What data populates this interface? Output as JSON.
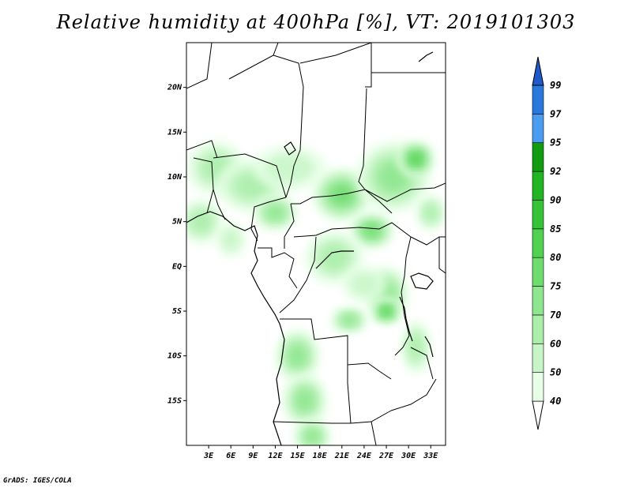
{
  "title": "Relative humidity at 400hPa [%], VT: 2019101303",
  "credit": "GrADS: IGES/COLA",
  "map": {
    "lon_range": [
      0,
      35
    ],
    "lat_range": [
      -20,
      25
    ],
    "lon_ticks": [
      {
        "value": 3,
        "label": "3E"
      },
      {
        "value": 6,
        "label": "6E"
      },
      {
        "value": 9,
        "label": "9E"
      },
      {
        "value": 12,
        "label": "12E"
      },
      {
        "value": 15,
        "label": "15E"
      },
      {
        "value": 18,
        "label": "18E"
      },
      {
        "value": 21,
        "label": "21E"
      },
      {
        "value": 24,
        "label": "24E"
      },
      {
        "value": 27,
        "label": "27E"
      },
      {
        "value": 30,
        "label": "30E"
      },
      {
        "value": 33,
        "label": "33E"
      }
    ],
    "lat_ticks": [
      {
        "value": 20,
        "label": "20N"
      },
      {
        "value": 15,
        "label": "15N"
      },
      {
        "value": 10,
        "label": "10N"
      },
      {
        "value": 5,
        "label": "5N"
      },
      {
        "value": 0,
        "label": "EQ"
      },
      {
        "value": -5,
        "label": "5S"
      },
      {
        "value": -10,
        "label": "10S"
      },
      {
        "value": -15,
        "label": "15S"
      }
    ]
  },
  "colorbar": {
    "levels": [
      "40",
      "50",
      "60",
      "70",
      "75",
      "80",
      "85",
      "90",
      "92",
      "95",
      "97",
      "99"
    ],
    "colors": [
      "#ffffff",
      "#e6ffe6",
      "#c8f5c8",
      "#aaeeaa",
      "#8ee68e",
      "#6edc6e",
      "#50d250",
      "#37c337",
      "#23b423",
      "#129c12",
      "#4a9cf0",
      "#2a78dc",
      "#1e5ac8"
    ]
  },
  "humidity_blobs": [
    {
      "lon": 4,
      "lat": 11,
      "rx": 4,
      "ry": 3,
      "level": 3
    },
    {
      "lon": 9,
      "lat": 9,
      "rx": 5,
      "ry": 3,
      "level": 3
    },
    {
      "lon": 2,
      "lat": 5,
      "rx": 3,
      "ry": 2.5,
      "level": 3
    },
    {
      "lon": 14,
      "lat": 11,
      "rx": 5,
      "ry": 2.5,
      "level": 2
    },
    {
      "lon": 21,
      "lat": 8,
      "rx": 4,
      "ry": 3,
      "level": 5
    },
    {
      "lon": 28,
      "lat": 10,
      "rx": 5,
      "ry": 4,
      "level": 4
    },
    {
      "lon": 31,
      "lat": 12,
      "rx": 2.5,
      "ry": 2,
      "level": 6
    },
    {
      "lon": 25,
      "lat": 4,
      "rx": 3,
      "ry": 2,
      "level": 5
    },
    {
      "lon": 20,
      "lat": 1,
      "rx": 4,
      "ry": 3,
      "level": 3
    },
    {
      "lon": 27,
      "lat": -3,
      "rx": 3,
      "ry": 3,
      "level": 4
    },
    {
      "lon": 27,
      "lat": -5,
      "rx": 2,
      "ry": 1.5,
      "level": 6
    },
    {
      "lon": 22,
      "lat": -6,
      "rx": 2.5,
      "ry": 1.5,
      "level": 4
    },
    {
      "lon": 15,
      "lat": -10,
      "rx": 3,
      "ry": 3,
      "level": 4
    },
    {
      "lon": 16,
      "lat": -15,
      "rx": 3,
      "ry": 3,
      "level": 4
    },
    {
      "lon": 17,
      "lat": -19,
      "rx": 2.5,
      "ry": 2,
      "level": 4
    },
    {
      "lon": 31,
      "lat": -9,
      "rx": 2,
      "ry": 3,
      "level": 3
    },
    {
      "lon": 6,
      "lat": 3,
      "rx": 2,
      "ry": 2,
      "level": 2
    },
    {
      "lon": 24,
      "lat": -2,
      "rx": 3,
      "ry": 2,
      "level": 2
    },
    {
      "lon": 12,
      "lat": 6,
      "rx": 3,
      "ry": 2,
      "level": 4
    },
    {
      "lon": 33,
      "lat": 6,
      "rx": 2,
      "ry": 2,
      "level": 3
    }
  ]
}
